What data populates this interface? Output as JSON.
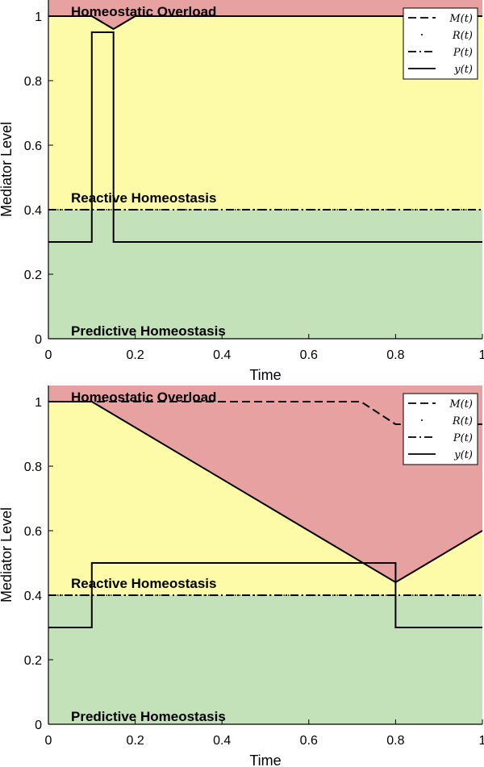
{
  "colors": {
    "overload": "#e8a1a1",
    "reactive": "#fdfba7",
    "predictive": "#c4e2ba",
    "line": "#000000"
  },
  "chart_data": [
    {
      "type": "line",
      "xlabel": "Time",
      "ylabel": "Mediator Level",
      "xlim": [
        0,
        1
      ],
      "ylim": [
        0,
        1.05
      ],
      "xticks": [
        "0",
        "0.2",
        "0.4",
        "0.6",
        "0.8",
        "1"
      ],
      "yticks": [
        "0",
        "0.2",
        "0.4",
        "0.6",
        "0.8",
        "1"
      ],
      "regions": [
        "Homeostatic Overload",
        "Reactive Homeostasis",
        "Predictive Homeostasis"
      ],
      "legend_position": "top-right",
      "series": [
        {
          "name": "M(t)",
          "style": "dashed",
          "x": [
            0,
            0.1,
            0.15,
            0.2,
            1
          ],
          "y": [
            1,
            1,
            0.96,
            1,
            1
          ]
        },
        {
          "name": "R(t)",
          "style": "dotted",
          "x": [
            0,
            1
          ],
          "y": [
            0.4,
            0.4
          ]
        },
        {
          "name": "P(t)",
          "style": "dashdot",
          "x": [
            0,
            1
          ],
          "y": [
            0.4,
            0.4
          ]
        },
        {
          "name": "y(t)",
          "style": "solid",
          "x": [
            0,
            0.1,
            0.1,
            0.15,
            0.15,
            1
          ],
          "y": [
            0.3,
            0.3,
            0.95,
            0.95,
            0.3,
            0.3
          ]
        }
      ],
      "overload_boundary": {
        "x": [
          0,
          0.1,
          0.15,
          0.2,
          1
        ],
        "y": [
          1,
          1,
          0.96,
          1,
          1
        ]
      }
    },
    {
      "type": "line",
      "xlabel": "Time",
      "ylabel": "Mediator Level",
      "xlim": [
        0,
        1
      ],
      "ylim": [
        0,
        1.05
      ],
      "xticks": [
        "0",
        "0.2",
        "0.4",
        "0.6",
        "0.8",
        "1"
      ],
      "yticks": [
        "0",
        "0.2",
        "0.4",
        "0.6",
        "0.8",
        "1"
      ],
      "regions": [
        "Homeostatic Overload",
        "Reactive Homeostasis",
        "Predictive Homeostasis"
      ],
      "legend_position": "top-right",
      "series": [
        {
          "name": "M(t)",
          "style": "dashed",
          "x": [
            0,
            0.72,
            0.8,
            1
          ],
          "y": [
            1,
            1,
            0.93,
            0.93
          ]
        },
        {
          "name": "R(t)",
          "style": "dotted",
          "x": [
            0,
            1
          ],
          "y": [
            0.4,
            0.4
          ]
        },
        {
          "name": "P(t)",
          "style": "dashdot",
          "x": [
            0,
            1
          ],
          "y": [
            0.4,
            0.4
          ]
        },
        {
          "name": "y(t)",
          "style": "solid",
          "x": [
            0,
            0.1,
            0.1,
            0.8,
            0.8,
            1
          ],
          "y": [
            0.3,
            0.3,
            0.5,
            0.5,
            0.3,
            0.3
          ]
        }
      ],
      "overload_boundary": {
        "x": [
          0,
          0.1,
          0.8,
          1
        ],
        "y": [
          1,
          1,
          0.44,
          0.6
        ]
      }
    }
  ]
}
